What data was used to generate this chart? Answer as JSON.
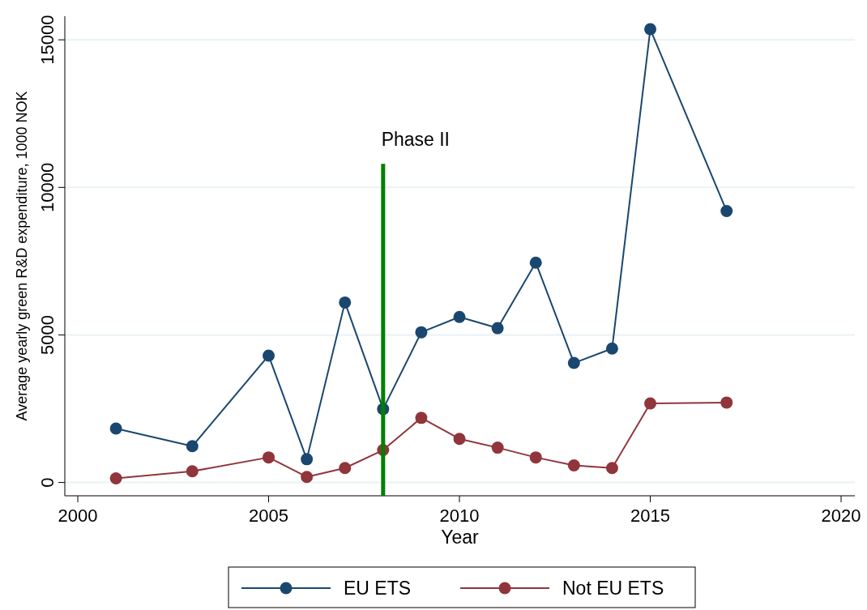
{
  "chart_data": {
    "type": "line",
    "xlabel": "Year",
    "ylabel": "Average yearly green R&D expenditure, 1000 NOK",
    "xlim": [
      1999.66,
      2020.36
    ],
    "xticks": [
      2000,
      2005,
      2010,
      2015,
      2020
    ],
    "ylim": [
      -450,
      15800
    ],
    "yticks": [
      0,
      5000,
      10000,
      15000
    ],
    "grid": "y",
    "legend": "bottom",
    "marker": "circle",
    "series": [
      {
        "name": "EU ETS",
        "color": "#1a476f",
        "x": [
          2001,
          2003,
          2005,
          2006,
          2007,
          2008,
          2009,
          2010,
          2011,
          2012,
          2013,
          2014,
          2015,
          2017
        ],
        "values": [
          1830,
          1230,
          4300,
          790,
          6100,
          2490,
          5090,
          5610,
          5230,
          7450,
          4050,
          4540,
          15360,
          9200
        ]
      },
      {
        "name": "Not EU ETS",
        "color": "#90353b",
        "x": [
          2001,
          2003,
          2005,
          2006,
          2007,
          2008,
          2009,
          2010,
          2011,
          2012,
          2013,
          2014,
          2015,
          2017
        ],
        "values": [
          140,
          380,
          850,
          190,
          490,
          1100,
          2190,
          1480,
          1180,
          850,
          580,
          490,
          2680,
          2710
        ]
      },
      {
        "type": "line",
        "color": "#008000",
        "marker": "none",
        "x": [
          2008,
          2008
        ],
        "values": [
          -450,
          10800
        ]
      }
    ],
    "annotations": [
      "Phase II"
    ]
  }
}
